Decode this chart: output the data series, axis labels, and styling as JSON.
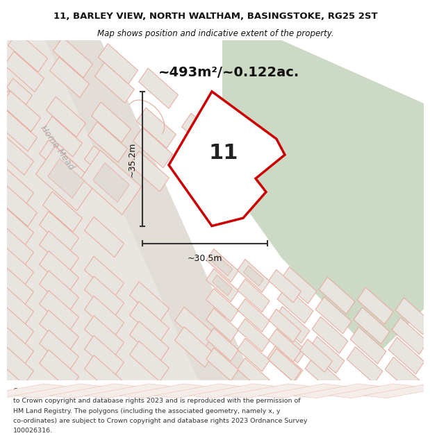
{
  "title_line1": "11, BARLEY VIEW, NORTH WALTHAM, BASINGSTOKE, RG25 2ST",
  "title_line2": "Map shows position and indicative extent of the property.",
  "area_label": "~493m²/~0.122ac.",
  "property_number": "11",
  "dim_width": "~30.5m",
  "dim_height": "~35.2m",
  "street_name": "Home Mead",
  "copy_lines": [
    "Contains OS data © Crown copyright and database right 2021. This information is subject",
    "to Crown copyright and database rights 2023 and is reproduced with the permission of",
    "HM Land Registry. The polygons (including the associated geometry, namely x, y",
    "co-ordinates) are subject to Crown copyright and database rights 2023 Ordnance Survey",
    "100026316."
  ],
  "bg_color": "#f5f5f2",
  "map_bg": "#f0efeb",
  "green_area_color": "#ccd9c5",
  "building_fill": "#e8e4df",
  "building_outline": "#e8a898",
  "road_fill": "#e8e4df",
  "property_outline": "#cc0000",
  "property_fill": "#ffffff",
  "dim_line_color": "#333333",
  "text_color": "#111111",
  "title_color": "#111111",
  "street_color": "#aaaaaa",
  "title_fontsize": 9.5,
  "subtitle_fontsize": 8.5,
  "area_fontsize": 14,
  "dim_fontsize": 9,
  "number_fontsize": 22,
  "street_fontsize": 9,
  "copy_fontsize": 6.8
}
